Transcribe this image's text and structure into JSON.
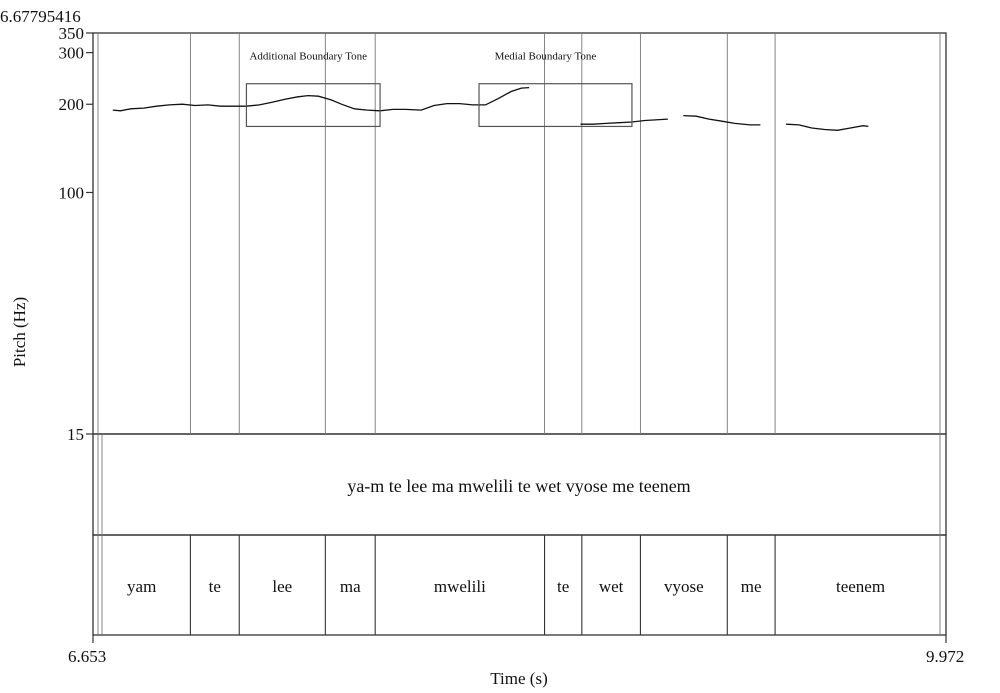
{
  "chart_data": {
    "type": "line",
    "top_label": "6.67795416",
    "xlabel": "Time (s)",
    "ylabel": "Pitch (Hz)",
    "xlim": [
      6.653,
      9.972
    ],
    "x_tick_labels": [
      "6.653",
      "9.972"
    ],
    "ylim": [
      15,
      350
    ],
    "y_tick_labels": [
      "350",
      "300",
      "200",
      "100",
      "15"
    ],
    "sentence": "ya-m te lee ma mwelili te wet vyose me teenem",
    "words": [
      {
        "text": "yam",
        "start": 6.653,
        "end": 7.032
      },
      {
        "text": "te",
        "start": 7.032,
        "end": 7.222
      },
      {
        "text": "lee",
        "start": 7.222,
        "end": 7.557
      },
      {
        "text": "ma",
        "start": 7.557,
        "end": 7.751
      },
      {
        "text": "mwelili",
        "start": 7.751,
        "end": 8.41
      },
      {
        "text": "te",
        "start": 8.41,
        "end": 8.555
      },
      {
        "text": "wet",
        "start": 8.555,
        "end": 8.783
      },
      {
        "text": "vyose",
        "start": 8.783,
        "end": 9.121
      },
      {
        "text": "me",
        "start": 9.121,
        "end": 9.307
      },
      {
        "text": "teenem",
        "start": 9.307,
        "end": 9.972
      }
    ],
    "annotations": [
      {
        "label": "Additional Boundary Tone",
        "t_start": 7.25,
        "t_end": 7.77,
        "hz_low": 168,
        "hz_high": 235
      },
      {
        "label": "Medial Boundary Tone",
        "t_start": 8.155,
        "t_end": 8.75,
        "hz_low": 168,
        "hz_high": 235
      }
    ],
    "series": [
      {
        "values": [
          [
            6.73,
            191
          ],
          [
            6.76,
            190
          ],
          [
            6.8,
            193
          ],
          [
            6.85,
            194
          ],
          [
            6.9,
            197
          ],
          [
            6.95,
            199
          ],
          [
            7.0,
            200
          ],
          [
            7.05,
            198
          ],
          [
            7.1,
            199
          ],
          [
            7.15,
            197
          ],
          [
            7.2,
            197
          ],
          [
            7.25,
            197
          ],
          [
            7.3,
            199
          ],
          [
            7.35,
            203
          ],
          [
            7.4,
            208
          ],
          [
            7.45,
            212
          ],
          [
            7.49,
            214
          ],
          [
            7.53,
            213
          ],
          [
            7.58,
            207
          ],
          [
            7.62,
            200
          ],
          [
            7.67,
            193
          ],
          [
            7.72,
            191
          ],
          [
            7.77,
            190
          ],
          [
            7.82,
            192
          ],
          [
            7.87,
            192
          ],
          [
            7.93,
            191
          ],
          [
            7.98,
            198
          ],
          [
            8.03,
            201
          ],
          [
            8.08,
            201
          ],
          [
            8.13,
            199
          ],
          [
            8.18,
            199
          ],
          [
            8.23,
            209
          ],
          [
            8.28,
            221
          ],
          [
            8.32,
            227
          ],
          [
            8.35,
            228
          ]
        ]
      },
      {
        "values": [
          [
            8.55,
            171
          ],
          [
            8.6,
            171
          ],
          [
            8.65,
            172
          ],
          [
            8.7,
            173
          ],
          [
            8.75,
            174
          ],
          [
            8.8,
            176
          ],
          [
            8.89,
            178
          ]
        ]
      },
      {
        "values": [
          [
            8.95,
            183
          ],
          [
            9.0,
            182
          ],
          [
            9.05,
            178
          ],
          [
            9.1,
            175
          ],
          [
            9.15,
            172
          ],
          [
            9.21,
            170
          ],
          [
            9.25,
            170
          ]
        ]
      },
      {
        "values": [
          [
            9.35,
            171
          ],
          [
            9.4,
            170
          ],
          [
            9.45,
            166
          ],
          [
            9.5,
            164
          ],
          [
            9.55,
            163
          ],
          [
            9.6,
            166
          ],
          [
            9.65,
            169
          ],
          [
            9.67,
            168
          ]
        ]
      }
    ]
  }
}
